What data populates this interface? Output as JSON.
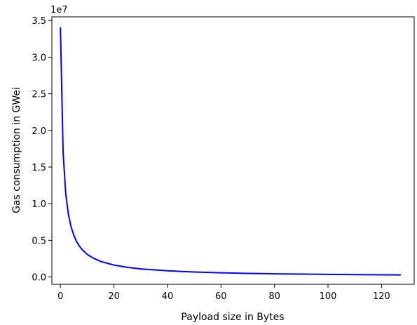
{
  "chart_data": {
    "type": "line",
    "title": "",
    "xlabel": "Payload size in Bytes",
    "ylabel": "Gas consumption in GWei",
    "y_offset_label": "1e7",
    "y_scale": 10000000,
    "xlim": [
      -3.2,
      132.2
    ],
    "ylim": [
      -1000000,
      35500000
    ],
    "xticks": [
      0,
      20,
      40,
      60,
      80,
      100,
      120
    ],
    "yticks": [
      0,
      5000000,
      10000000,
      15000000,
      20000000,
      25000000,
      30000000,
      35000000
    ],
    "ytick_labels": [
      "0.0",
      "0.5",
      "1.0",
      "1.5",
      "2.0",
      "2.5",
      "3.0",
      "3.5"
    ],
    "grid": false,
    "legend": "none",
    "series": [
      {
        "color": "#0000ff",
        "x": [
          0,
          1,
          2,
          3,
          4,
          5,
          6,
          7,
          8,
          10,
          12,
          15,
          20,
          25,
          30,
          40,
          50,
          60,
          70,
          80,
          90,
          100,
          110,
          120,
          127
        ],
        "y": [
          34000000,
          17000000,
          11300000,
          8500000,
          6800000,
          5700000,
          4850000,
          4250000,
          3780000,
          3090000,
          2620000,
          2120000,
          1620000,
          1310000,
          1100000,
          840000,
          680000,
          570000,
          490000,
          430000,
          385000,
          348000,
          317000,
          292000,
          278000
        ]
      }
    ]
  }
}
